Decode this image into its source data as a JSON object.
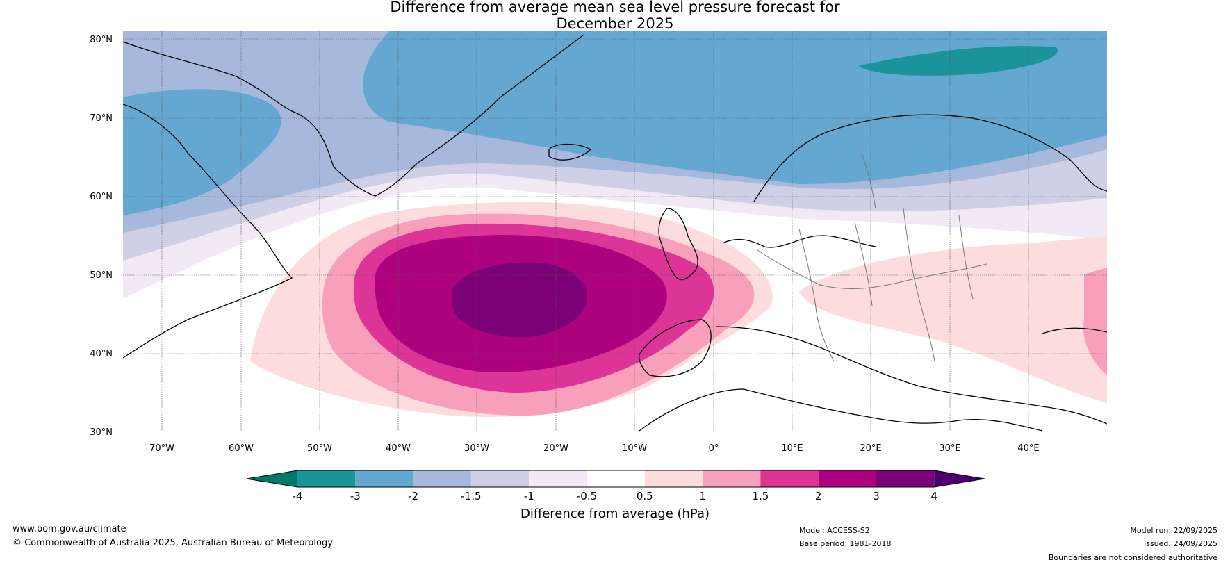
{
  "title": {
    "line1": "Difference from average mean sea level pressure forecast for",
    "line2": "December 2025"
  },
  "map": {
    "lat_labels": [
      "80°N",
      "70°N",
      "60°N",
      "50°N",
      "40°N",
      "30°N"
    ],
    "lon_labels": [
      "70°W",
      "60°W",
      "50°W",
      "40°W",
      "30°W",
      "20°W",
      "10°W",
      "0°",
      "10°E",
      "20°E",
      "30°E",
      "40°E"
    ],
    "lat_range": [
      30,
      81
    ],
    "lon_range": [
      -75,
      50
    ],
    "feature_max": {
      "value": 4,
      "center_lon": -24,
      "center_lat": 47,
      "description": "positive pressure anomaly centred west of Europe"
    }
  },
  "colorbar": {
    "label": "Difference from average (hPa)",
    "ticks": [
      "-4",
      "-3",
      "-2",
      "-1.5",
      "-1",
      "-0.5",
      "0.5",
      "1",
      "1.5",
      "2",
      "3",
      "4"
    ],
    "colors": [
      "#00786b",
      "#1a9399",
      "#64a8d1",
      "#a6b8dc",
      "#cfd0e5",
      "#f1e9f3",
      "#ffffff",
      "#fcdcdc",
      "#f89fbb",
      "#dd3497",
      "#ae017e",
      "#7a0177",
      "#49006a"
    ]
  },
  "footer": {
    "website": "www.bom.gov.au/climate",
    "copyright": "© Commonwealth of Australia 2025, Australian Bureau of Meteorology",
    "model": "Model: ACCESS-S2",
    "base_period": "Base period: 1981-2018",
    "model_run": "Model run: 22/09/2025",
    "issued": "Issued: 24/09/2025",
    "disclaimer": "Boundaries are not considered authoritative"
  }
}
